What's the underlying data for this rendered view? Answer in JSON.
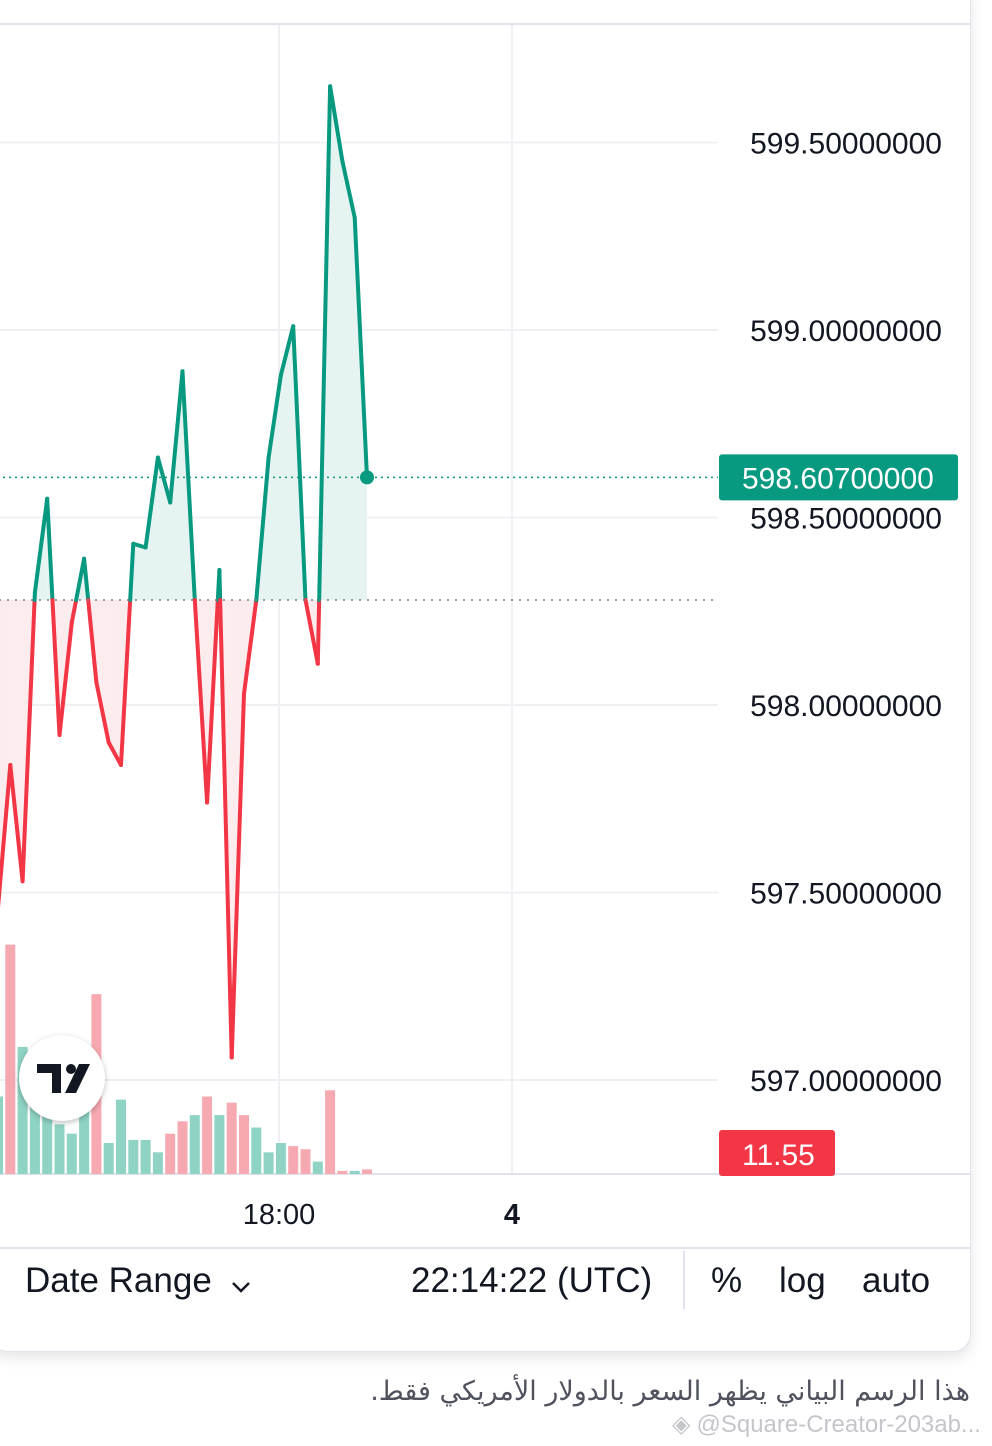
{
  "toolbar": {
    "date_range_label": "Date Range",
    "clock": "22:14:22 (UTC)",
    "percent_label": "%",
    "log_label": "log",
    "auto_label": "auto"
  },
  "caption": "هذا الرسم البياني يظهر السعر بالدولار الأمريكي فقط.",
  "watermark": "@Square-Creator-203ab...",
  "colors": {
    "up": "#089981",
    "down": "#f23645",
    "up_fill": "#e6f4f1",
    "down_fill": "#fdecee",
    "vol_up": "#8fd3c4",
    "vol_down": "#f7a9b1",
    "grid": "#eef0f3"
  },
  "chart_data": {
    "type": "line",
    "style": "baseline",
    "baseline_value": 598.28,
    "y_ticks": [
      "599.50000000",
      "599.00000000",
      "598.50000000",
      "598.00000000",
      "597.50000000",
      "597.00000000"
    ],
    "y_tick_values": [
      599.5,
      599.0,
      598.5,
      598.0,
      597.5,
      597.0
    ],
    "x_ticks": [
      {
        "label": "18:00",
        "bold": false
      },
      {
        "label": "4",
        "bold": true
      }
    ],
    "current_price_label": "598.60700000",
    "volume_label": "11.55",
    "series": [
      {
        "values": [
          597.46,
          597.84,
          597.53,
          598.3,
          598.55,
          597.92,
          598.22,
          598.39,
          598.06,
          597.9,
          597.84,
          598.43,
          598.42,
          598.66,
          598.54,
          598.89,
          598.28,
          597.74,
          598.36,
          597.06,
          598.03,
          598.28,
          598.66,
          598.88,
          599.01,
          598.28,
          598.11,
          599.65,
          599.45,
          599.3,
          598.607
        ]
      }
    ],
    "volume": [
      {
        "v": 0.25,
        "up": true
      },
      {
        "v": 0.74,
        "up": false
      },
      {
        "v": 0.41,
        "up": true
      },
      {
        "v": 0.4,
        "up": true
      },
      {
        "v": 0.25,
        "up": true
      },
      {
        "v": 0.16,
        "up": true
      },
      {
        "v": 0.13,
        "up": true
      },
      {
        "v": 0.35,
        "up": true
      },
      {
        "v": 0.58,
        "up": false
      },
      {
        "v": 0.1,
        "up": true
      },
      {
        "v": 0.24,
        "up": true
      },
      {
        "v": 0.11,
        "up": true
      },
      {
        "v": 0.11,
        "up": true
      },
      {
        "v": 0.07,
        "up": true
      },
      {
        "v": 0.13,
        "up": false
      },
      {
        "v": 0.17,
        "up": false
      },
      {
        "v": 0.19,
        "up": true
      },
      {
        "v": 0.25,
        "up": false
      },
      {
        "v": 0.19,
        "up": true
      },
      {
        "v": 0.23,
        "up": false
      },
      {
        "v": 0.19,
        "up": false
      },
      {
        "v": 0.15,
        "up": true
      },
      {
        "v": 0.07,
        "up": true
      },
      {
        "v": 0.1,
        "up": true
      },
      {
        "v": 0.09,
        "up": false
      },
      {
        "v": 0.08,
        "up": false
      },
      {
        "v": 0.04,
        "up": true
      },
      {
        "v": 0.27,
        "up": false
      },
      {
        "v": 0.01,
        "up": false
      },
      {
        "v": 0.01,
        "up": true
      },
      {
        "v": 0.015,
        "up": false
      }
    ]
  }
}
